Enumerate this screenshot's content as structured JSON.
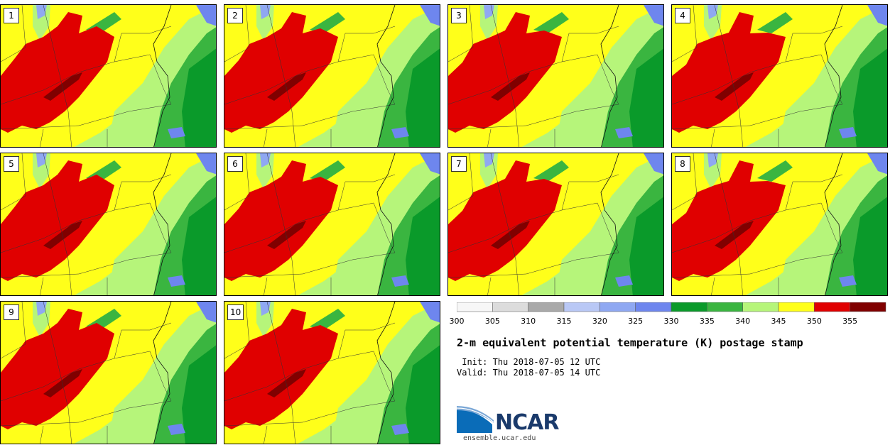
{
  "members": [
    {
      "label": "1"
    },
    {
      "label": "2"
    },
    {
      "label": "3"
    },
    {
      "label": "4"
    },
    {
      "label": "5"
    },
    {
      "label": "6"
    },
    {
      "label": "7"
    },
    {
      "label": "8"
    },
    {
      "label": "9"
    },
    {
      "label": "10"
    }
  ],
  "colorbar": {
    "ticks": [
      "300",
      "305",
      "310",
      "315",
      "320",
      "325",
      "330",
      "335",
      "340",
      "345",
      "350",
      "355"
    ],
    "colors": [
      "#f7f7f7",
      "#dcdcdc",
      "#a9a9a9",
      "#b9c8f5",
      "#8fa8f2",
      "#6e86ee",
      "#0a9a2a",
      "#3ab540",
      "#b6f57a",
      "#ffff1a",
      "#e00000",
      "#800000"
    ]
  },
  "title": "2-m equivalent potential temperature (K) postage stamp",
  "init_line": " Init: Thu 2018-07-05 12 UTC",
  "valid_line": "Valid: Thu 2018-07-05 14 UTC",
  "logo": {
    "text": "NCAR",
    "url": "ensemble.ucar.edu"
  },
  "map_colors": {
    "yellow": "#ffff1a",
    "lightgreen": "#b6f57a",
    "green": "#3ab540",
    "darkgreen": "#0a9a2a",
    "red": "#e00000",
    "darkred": "#800000",
    "blue": "#6e86ee",
    "lightblue": "#8fa8f2"
  }
}
